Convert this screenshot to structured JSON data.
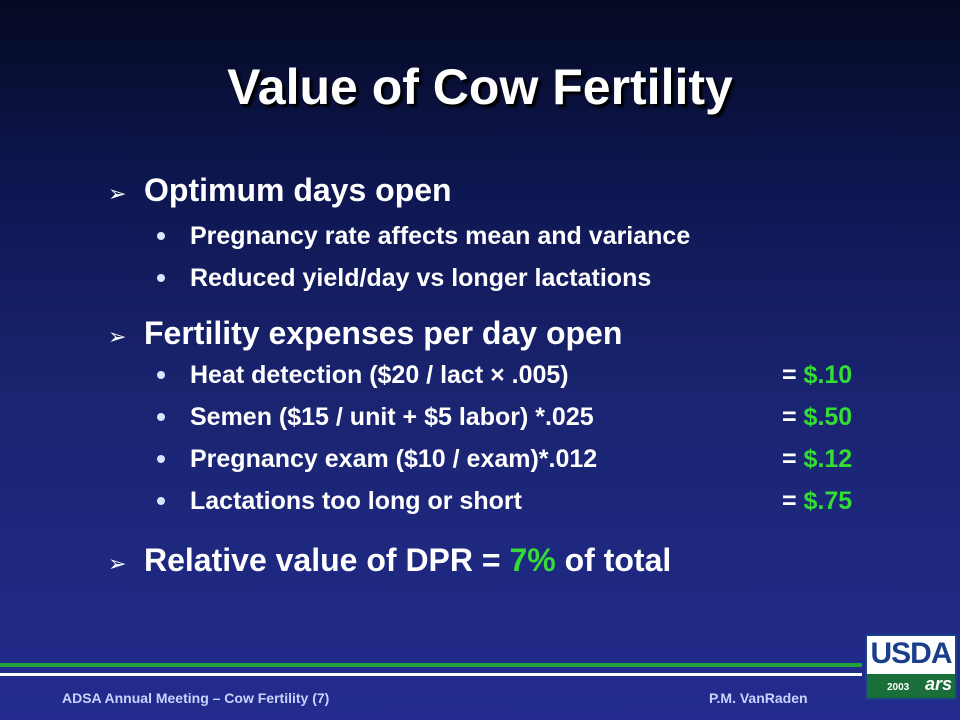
{
  "title": "Value of Cow Fertility",
  "sections": [
    {
      "heading": "Optimum days open",
      "items": [
        {
          "text": "Pregnancy rate affects mean and variance"
        },
        {
          "text": "Reduced yield/day vs longer lactations"
        }
      ]
    },
    {
      "heading": "Fertility expenses per day open",
      "items": [
        {
          "text": "Heat detection ($20 / lact × .005)",
          "eq": "= ",
          "value": "$.10"
        },
        {
          "text": "Semen ($15 / unit + $5 labor) *.025",
          "eq": "= ",
          "value": "$.50"
        },
        {
          "text": "Pregnancy exam ($10 / exam)*.012",
          "eq": "= ",
          "value": "$.12"
        },
        {
          "text": "Lactations too long or short",
          "eq": "= ",
          "value": "$.75"
        }
      ]
    },
    {
      "heading_pre": "Relative value of DPR = ",
      "heading_highlight": "7%",
      "heading_post": " of total"
    }
  ],
  "footer": {
    "left": "ADSA Annual Meeting – Cow Fertility (7)",
    "right": "P.M. VanRaden"
  },
  "logo": {
    "text": "USDA",
    "year": "2003",
    "mark": "ars"
  },
  "colors": {
    "highlight": "#33dd33",
    "footer_text": "#c8d4ff",
    "rule_green": "#1fa33a"
  }
}
